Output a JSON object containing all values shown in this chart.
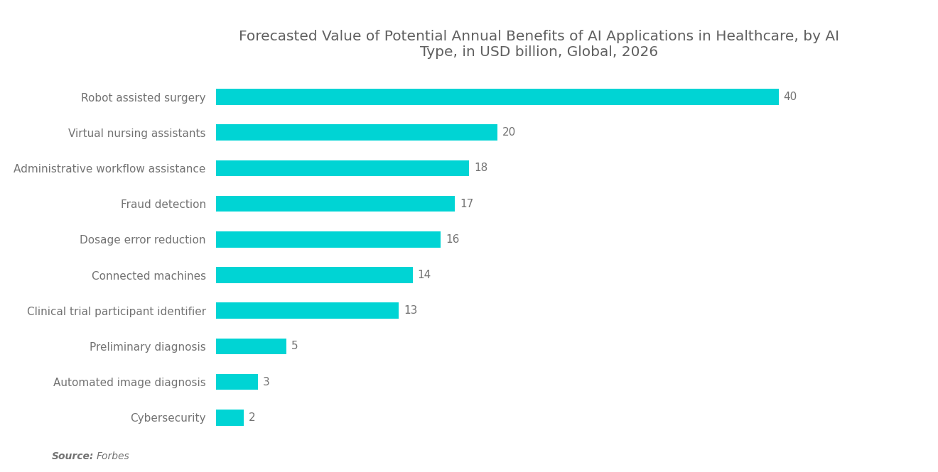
{
  "title": "Forecasted Value of Potential Annual Benefits of AI Applications in Healthcare, by AI\nType, in USD billion, Global, 2026",
  "categories": [
    "Robot assisted surgery",
    "Virtual nursing assistants",
    "Administrative workflow assistance",
    "Fraud detection",
    "Dosage error reduction",
    "Connected machines",
    "Clinical trial participant identifier",
    "Preliminary diagnosis",
    "Automated image diagnosis",
    "Cybersecurity"
  ],
  "values": [
    40,
    20,
    18,
    17,
    16,
    14,
    13,
    5,
    3,
    2
  ],
  "bar_color": "#00D4D4",
  "label_color": "#737373",
  "title_color": "#606060",
  "source_label": "Source:",
  "source_text": "Forbes",
  "background_color": "#ffffff",
  "xlim": [
    0,
    46
  ],
  "title_fontsize": 14.5,
  "label_fontsize": 11,
  "value_fontsize": 11
}
